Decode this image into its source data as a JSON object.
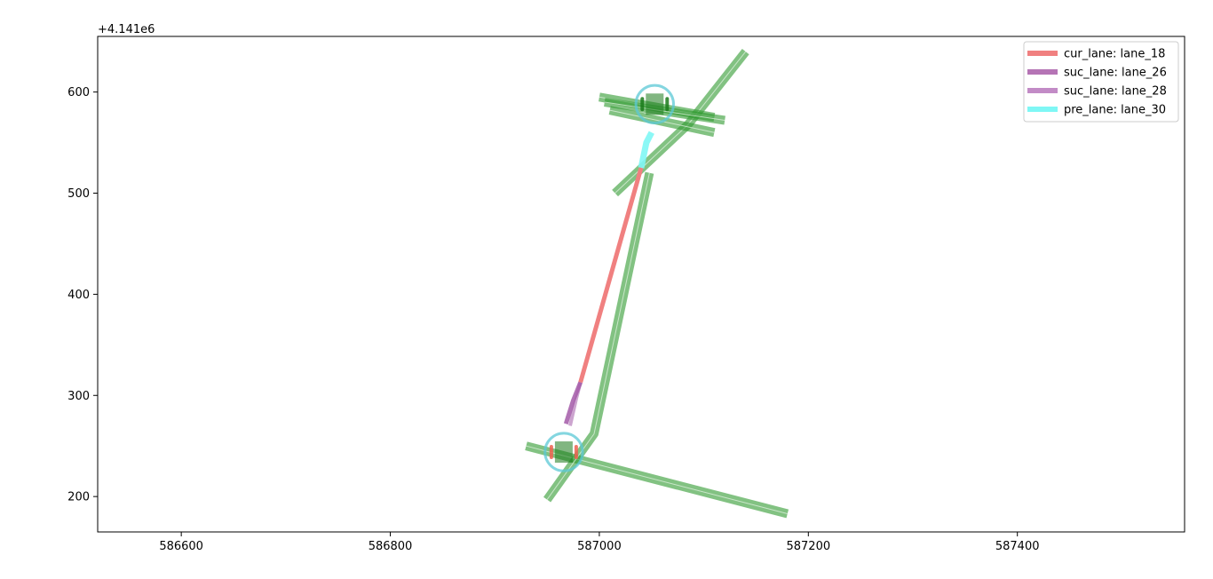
{
  "chart_data": {
    "type": "line",
    "title": "",
    "xlabel": "",
    "ylabel": "",
    "y_offset_label": "+4.141e6",
    "xlim": [
      586520,
      587560
    ],
    "ylim": [
      165,
      655
    ],
    "grid": false,
    "legend_placement": "top-right",
    "x_ticks": [
      {
        "value": 586600,
        "label": "586600"
      },
      {
        "value": 586800,
        "label": "586800"
      },
      {
        "value": 587000,
        "label": "587000"
      },
      {
        "value": 587200,
        "label": "587200"
      },
      {
        "value": 587400,
        "label": "587400"
      }
    ],
    "y_ticks": [
      {
        "value": 200,
        "label": "200"
      },
      {
        "value": 300,
        "label": "300"
      },
      {
        "value": 400,
        "label": "400"
      },
      {
        "value": 500,
        "label": "500"
      },
      {
        "value": 600,
        "label": "600"
      }
    ],
    "legend": [
      {
        "label": "cur_lane: lane_18",
        "color": "#f08080"
      },
      {
        "label": "suc_lane: lane_26",
        "color": "#b574b5"
      },
      {
        "label": "suc_lane: lane_28",
        "color": "#c28bc6"
      },
      {
        "label": "pre_lane: lane_30",
        "color": "#7ff7f5"
      }
    ],
    "colors": {
      "road": "#2e9a2e",
      "road_dark": "#1a7a1a",
      "crosswalk": "#5bc8d6",
      "cur_lane": "#f08080",
      "suc_lane": "#a35aa8",
      "pre_lane": "#7ff7f5",
      "stop_marks": "#ee6050"
    },
    "series": [
      {
        "kind": "road",
        "points": [
          [
            587015,
            500
          ],
          [
            587085,
            568
          ],
          [
            587140,
            640
          ]
        ]
      },
      {
        "kind": "road",
        "points": [
          [
            587000,
            595
          ],
          [
            587110,
            575
          ]
        ]
      },
      {
        "kind": "road",
        "points": [
          [
            587005,
            590
          ],
          [
            587120,
            572
          ]
        ]
      },
      {
        "kind": "road",
        "points": [
          [
            587010,
            582
          ],
          [
            587110,
            560
          ]
        ]
      },
      {
        "kind": "road",
        "points": [
          [
            586930,
            250
          ],
          [
            587180,
            183
          ]
        ]
      },
      {
        "kind": "road",
        "points": [
          [
            586950,
            197
          ],
          [
            586995,
            262
          ],
          [
            587048,
            520
          ]
        ]
      },
      {
        "kind": "cur_lane",
        "points": [
          [
            586982,
            313
          ],
          [
            587040,
            525
          ]
        ]
      },
      {
        "kind": "suc_lane",
        "points": [
          [
            586982,
            313
          ],
          [
            586975,
            295
          ],
          [
            586968,
            272
          ]
        ]
      },
      {
        "kind": "suc_lane_alt",
        "points": [
          [
            586982,
            313
          ],
          [
            586978,
            297
          ],
          [
            586972,
            270
          ]
        ]
      },
      {
        "kind": "pre_lane",
        "points": [
          [
            587040,
            525
          ],
          [
            587045,
            550
          ],
          [
            587050,
            560
          ]
        ]
      },
      {
        "kind": "crosswalk",
        "center": [
          587053,
          588
        ],
        "radius": 18
      },
      {
        "kind": "crosswalk",
        "center": [
          586966,
          244
        ],
        "radius": 18
      }
    ]
  }
}
